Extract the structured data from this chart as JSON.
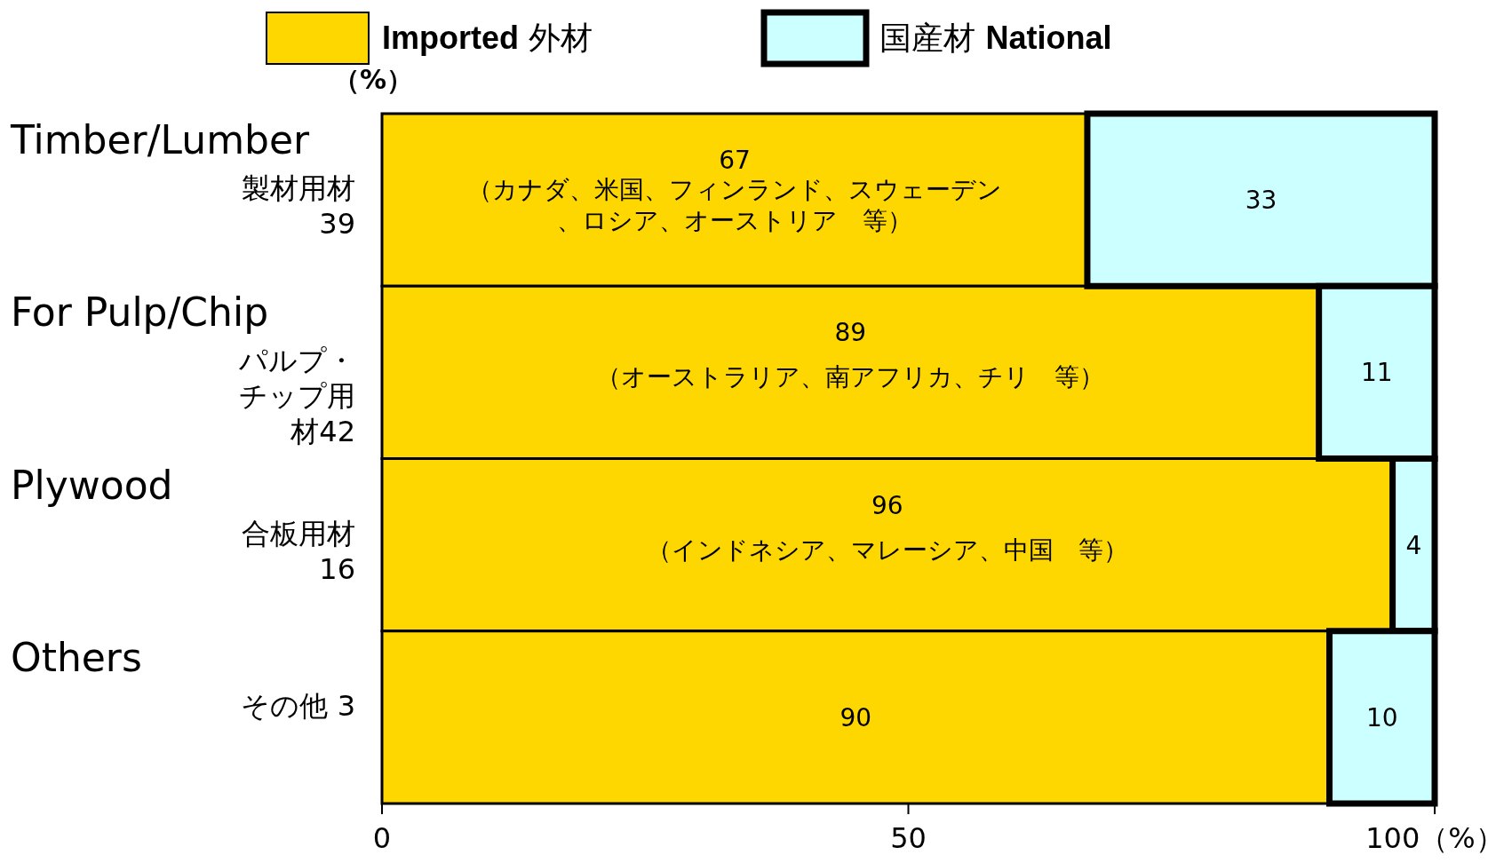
{
  "chart_data": {
    "type": "bar",
    "orientation": "horizontal",
    "stacked": true,
    "categories": [
      "Timber/Lumber",
      "For Pulp/Chip",
      "Plywood",
      "Others"
    ],
    "series": [
      {
        "name": "**Imported** 外材",
        "color": "#ffd700",
        "values": [
          67,
          89,
          96,
          90
        ]
      },
      {
        "name": "国産材 **National**",
        "color": "#ccffff",
        "values": [
          33,
          11,
          4,
          10
        ]
      }
    ],
    "xlim": [
      0,
      100
    ],
    "xticks": [
      0,
      50,
      {
        "value": 100,
        "label": "100（%）"
      }
    ],
    "ylabel": "（%）",
    "data_labels": true,
    "legend": "top",
    "annotations": [
      "製材用材39",
      "パルプ・チップ用材42",
      "合板用材16",
      "その他 3",
      "（カナダ、米国、フィンランド、スウェーデン、ロシア、オーストリア　等）",
      "（オーストラリア、南アフリカ、チリ　等）",
      "（インドネシア、マレーシア、中国　等）"
    ]
  }
}
